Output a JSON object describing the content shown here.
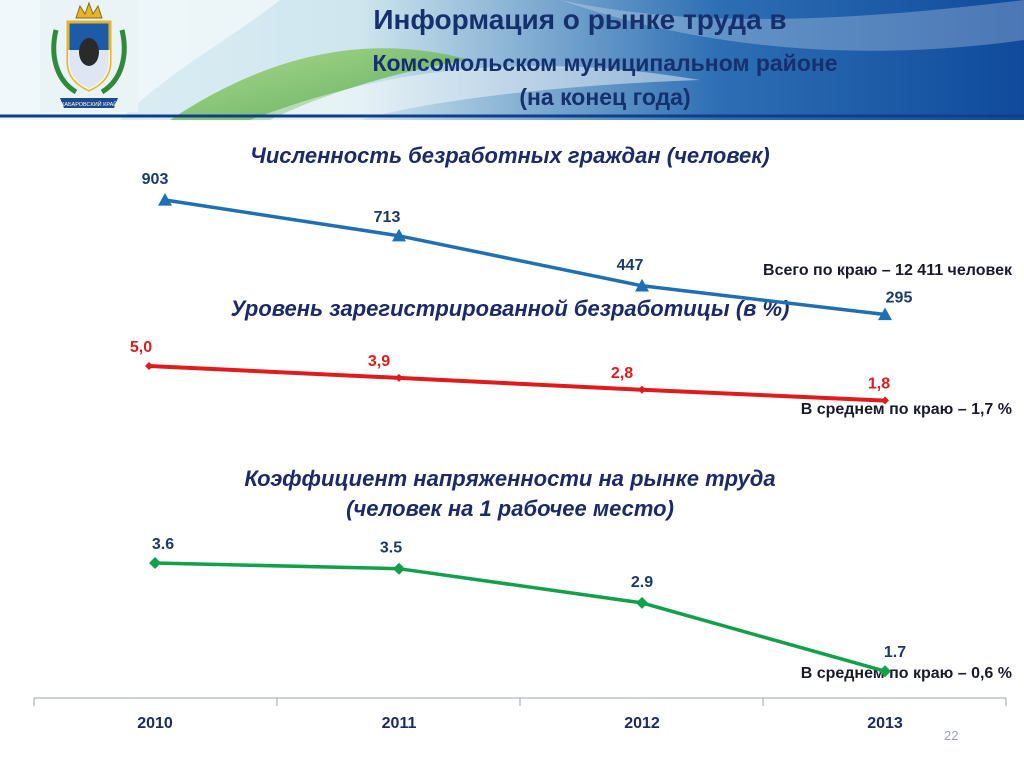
{
  "header": {
    "title_line1": "Информация о рынке труда в",
    "title_line2": "Комсомольском муниципальном районе",
    "title_line3": "(на конец года)",
    "emblem_icon": "khabarovsk-coat-of-arms-icon",
    "emblem_caption": "ХАБАРОВСКИЙ КРАЙ"
  },
  "chart1": {
    "title": "Численность безработных граждан (человек)",
    "note": "Всего по краю – 12 411 человек"
  },
  "chart2": {
    "title": "Уровень зарегистрированной безработицы (в %)",
    "note": "В среднем по краю – 1,7 %"
  },
  "chart3": {
    "title_line1": "Коэффициент напряженности на рынке труда",
    "title_line2": "(человек на 1 рабочее место)",
    "note": "В среднем по краю – 0,6 %"
  },
  "page_number": "22",
  "chart_data": [
    {
      "type": "line",
      "title": "Численность безработных граждан (человек)",
      "categories": [
        "2010",
        "2011",
        "2012",
        "2013"
      ],
      "values": [
        903,
        713,
        447,
        295
      ],
      "labels": [
        "903",
        "713",
        "447",
        "295"
      ],
      "color": "#1f6fb5",
      "marker": "triangle"
    },
    {
      "type": "line",
      "title": "Уровень зарегистрированной безработицы (в %)",
      "categories": [
        "2010",
        "2011",
        "2012",
        "2013"
      ],
      "values": [
        5.0,
        3.9,
        2.8,
        1.8
      ],
      "labels": [
        "5,0",
        "3,9",
        "2,8",
        "1,8"
      ],
      "color": "#e01b1b",
      "marker": "diamond"
    },
    {
      "type": "line",
      "title": "Коэффициент напряженности на рынке труда (человек на 1 рабочее место)",
      "categories": [
        "2010",
        "2011",
        "2012",
        "2013"
      ],
      "values": [
        3.6,
        3.5,
        2.9,
        1.7
      ],
      "labels": [
        "3.6",
        "3.5",
        "2.9",
        "1.7"
      ],
      "color": "#12a04a",
      "marker": "diamond"
    }
  ]
}
